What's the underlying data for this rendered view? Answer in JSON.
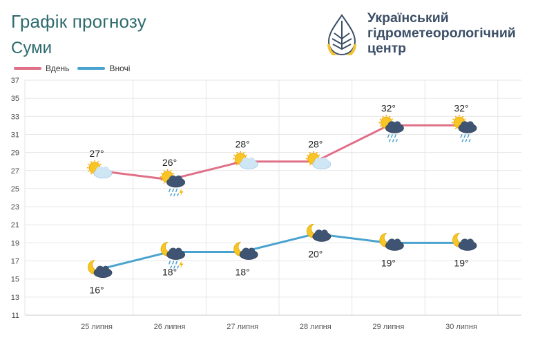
{
  "header": {
    "title": "Графік прогнозу",
    "subtitle": "Суми",
    "org_line1": "Український",
    "org_line2": "гідрометеорологічний",
    "org_line3": "центр"
  },
  "colors": {
    "day": "#e07088",
    "night": "#4aa3cf",
    "title": "#2e6b6e",
    "org": "#3c4f66"
  },
  "chart_data": {
    "type": "line",
    "title": "Графік прогнозу",
    "subtitle": "Суми",
    "categories": [
      "25 липня",
      "26 липня",
      "27 липня",
      "28 липня",
      "29 липня",
      "30 липня"
    ],
    "series": [
      {
        "name": "Вдень",
        "values": [
          27,
          26,
          28,
          28,
          32,
          32
        ],
        "labels": [
          "27°",
          "26°",
          "28°",
          "28°",
          "32°",
          "32°"
        ],
        "icons": [
          "sun-cloud-icon",
          "sun-rain-thunder-icon",
          "sun-cloud-icon",
          "sun-cloud-icon",
          "sun-rain-icon",
          "sun-rain-icon"
        ]
      },
      {
        "name": "Вночі",
        "values": [
          16,
          18,
          18,
          20,
          19,
          19
        ],
        "labels": [
          "16°",
          "18°",
          "18°",
          "20°",
          "19°",
          "19°"
        ],
        "icons": [
          "moon-cloud-icon",
          "moon-rain-thunder-icon",
          "moon-cloud-icon",
          "moon-cloud-icon",
          "moon-cloud-icon",
          "moon-cloud-icon"
        ]
      }
    ],
    "yticks": [
      11,
      13,
      15,
      17,
      19,
      21,
      23,
      25,
      27,
      29,
      31,
      33,
      35,
      37
    ],
    "ylim": [
      11,
      37
    ],
    "grid": true,
    "legend": "top-left"
  }
}
